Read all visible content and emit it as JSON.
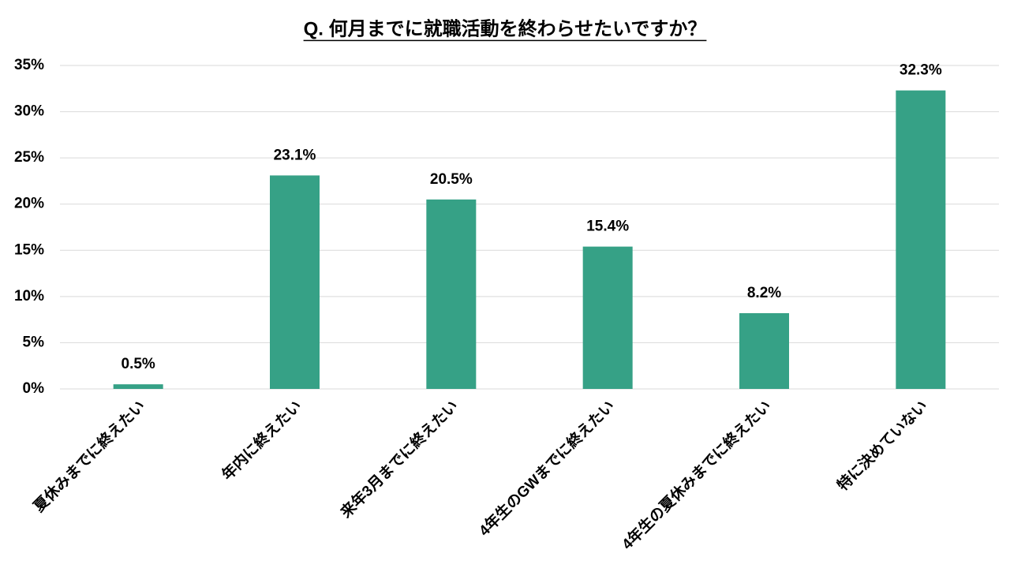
{
  "chart_data": {
    "type": "bar",
    "title": "Q. 何月までに就職活動を終わらせたいですか？",
    "categories": [
      "夏休みまでに終えたい",
      "年内に終えたい",
      "来年3月までに終えたい",
      "4年生のGWまでに終えたい",
      "4年生の夏休みまでに終えたい",
      "特に決めていない"
    ],
    "values": [
      0.5,
      23.1,
      20.5,
      15.4,
      8.2,
      32.3
    ],
    "value_labels": [
      "0.5%",
      "23.1%",
      "20.5%",
      "15.4%",
      "8.2%",
      "32.3%"
    ],
    "color": "#36a186",
    "ylim": [
      0,
      35
    ],
    "yticks": [
      {
        "value": 0,
        "label": "0%"
      },
      {
        "value": 5,
        "label": "5%"
      },
      {
        "value": 10,
        "label": "10%"
      },
      {
        "value": 15,
        "label": "15%"
      },
      {
        "value": 20,
        "label": "20%"
      },
      {
        "value": 25,
        "label": "25%"
      },
      {
        "value": 30,
        "label": "30%"
      },
      {
        "value": 35,
        "label": "35%"
      }
    ],
    "grid": true
  }
}
